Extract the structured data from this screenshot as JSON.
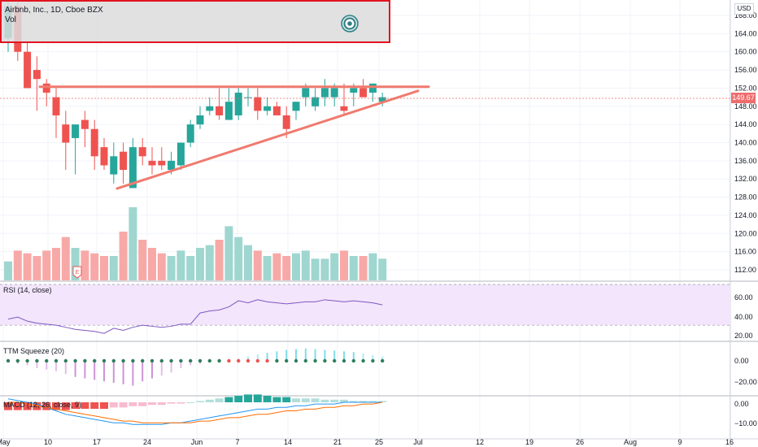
{
  "header": {
    "title": "Airbnb, Inc., 1D, Cboe BZX",
    "vol_label": "Vol",
    "logo_icon": "target-icon",
    "border_color": "#e1131f"
  },
  "price_axis": {
    "currency": "USD",
    "ticks": [
      "168.00",
      "164.00",
      "160.00",
      "156.00",
      "152.00",
      "148.00",
      "144.00",
      "140.00",
      "136.00",
      "132.00",
      "128.00",
      "124.00",
      "120.00",
      "116.00",
      "112.00"
    ],
    "current_price": "149.67"
  },
  "rsi": {
    "label": "RSI (14, close)",
    "ticks": [
      "60.00",
      "40.00",
      "20.00"
    ]
  },
  "ttm": {
    "label": "TTM Squeeze (20)",
    "ticks": [
      "0.00",
      "−20.00"
    ]
  },
  "macd": {
    "label": "MACD (12, 26, close, 9)",
    "ticks": [
      "0.00",
      "−10.00"
    ]
  },
  "time_axis": {
    "ticks": [
      "May",
      "10",
      "17",
      "24",
      "Jun",
      "7",
      "14",
      "21",
      "25",
      "Jul",
      "12",
      "19",
      "26",
      "Aug",
      "9",
      "16"
    ]
  },
  "earnings_marker": "E",
  "colors": {
    "up": "#26a69a",
    "down": "#ef5350",
    "trendline": "#f07a6e",
    "rsi_line": "#7e57c2",
    "rsi_band": "#f3e5fb",
    "macd_line": "#2196f3",
    "signal_line": "#ff6d00"
  },
  "chart_data": {
    "type": "candlestick",
    "dates": [
      "Apr 30",
      "May 3",
      "May 4",
      "May 5",
      "May 6",
      "May 7",
      "May 10",
      "May 11",
      "May 12",
      "May 13",
      "May 14",
      "May 17",
      "May 18",
      "May 19",
      "May 20",
      "May 21",
      "May 24",
      "May 25",
      "May 26",
      "May 27",
      "May 28",
      "Jun 1",
      "Jun 2",
      "Jun 3",
      "Jun 4",
      "Jun 7",
      "Jun 8",
      "Jun 9",
      "Jun 10",
      "Jun 11",
      "Jun 14",
      "Jun 15",
      "Jun 16",
      "Jun 17",
      "Jun 18",
      "Jun 21",
      "Jun 22",
      "Jun 23",
      "Jun 24",
      "Jun 25"
    ],
    "open": [
      163,
      170,
      160,
      156,
      153,
      150,
      144,
      141,
      145,
      143,
      139,
      133,
      138,
      130,
      139,
      136,
      136,
      134,
      135,
      140,
      144,
      147,
      148,
      145,
      146,
      150,
      150,
      147,
      148,
      146,
      147,
      150,
      148,
      150,
      150,
      148,
      151,
      152,
      151,
      149
    ],
    "high": [
      172,
      172,
      162,
      159,
      154,
      152,
      147,
      144,
      147,
      145,
      141,
      140,
      140,
      141,
      141,
      139,
      139,
      138,
      140,
      145,
      148,
      150,
      152,
      152,
      152,
      152,
      152,
      150,
      149,
      148,
      149,
      153,
      152,
      154,
      153,
      153,
      153,
      154,
      153,
      151
    ],
    "low": [
      160,
      158,
      152,
      147,
      148,
      141,
      134,
      133,
      139,
      134,
      134,
      131,
      131,
      130,
      135,
      133,
      134,
      133,
      134,
      139,
      143,
      146,
      145,
      145,
      145,
      148,
      145,
      146,
      146,
      141,
      145,
      148,
      147,
      148,
      148,
      146,
      148,
      150,
      149,
      148
    ],
    "close": [
      170,
      160,
      152,
      154,
      151,
      146,
      140,
      144,
      143,
      137,
      135,
      137,
      134,
      139,
      137,
      135,
      135,
      136,
      140,
      144,
      146,
      148,
      146,
      149,
      151,
      150,
      147,
      148,
      146,
      143,
      149,
      152,
      150,
      152,
      152,
      147,
      152,
      150,
      153,
      150
    ],
    "volume": [
      7,
      11,
      10,
      9,
      11,
      12,
      16,
      12,
      11,
      10,
      9,
      9,
      18,
      27,
      15,
      12,
      10,
      9,
      11,
      9,
      12,
      13,
      15,
      20,
      16,
      13,
      11,
      9,
      10,
      9,
      10,
      11,
      8,
      8,
      10,
      11,
      9,
      9,
      10,
      8
    ],
    "trendlines": [
      {
        "name": "resistance",
        "from": [
          "May 11",
          152.3
        ],
        "to": [
          "Jun 30",
          152.3
        ]
      },
      {
        "name": "support",
        "from": [
          "May 18",
          129.9
        ],
        "to": [
          "Jun 30",
          151.4
        ]
      }
    ],
    "rsi": [
      36,
      38,
      34,
      32,
      31,
      30,
      28,
      26,
      25,
      24,
      22,
      27,
      25,
      28,
      30,
      29,
      28,
      29,
      31,
      31,
      42,
      44,
      45,
      48,
      54,
      52,
      55,
      53,
      52,
      51,
      52,
      53,
      53,
      55,
      54,
      53,
      54,
      53,
      52,
      50
    ]
  }
}
